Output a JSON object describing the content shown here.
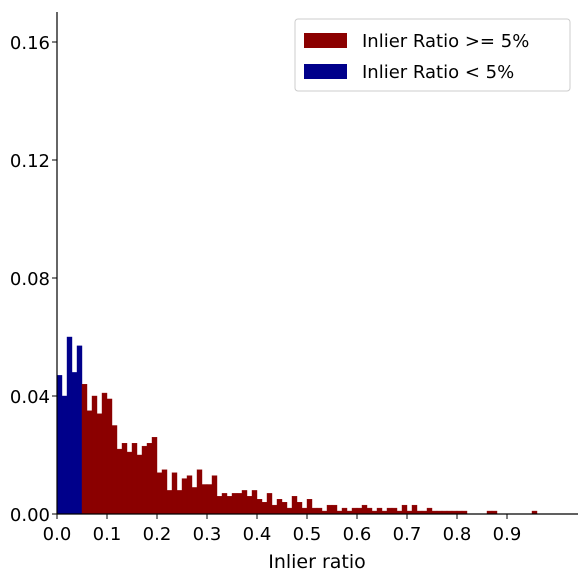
{
  "chart_data": {
    "type": "bar",
    "title": "",
    "xlabel": "Inlier ratio",
    "ylabel": "",
    "xlim": [
      0.0,
      1.0
    ],
    "ylim": [
      0.0,
      0.17
    ],
    "x_ticks": [
      "0.0",
      "0.1",
      "0.2",
      "0.3",
      "0.4",
      "0.5",
      "0.6",
      "0.7",
      "0.8",
      "0.9"
    ],
    "y_ticks": [
      "0.00",
      "0.04",
      "0.08",
      "0.12",
      "0.16"
    ],
    "bin_width": 0.01,
    "legend": {
      "position": "top-right",
      "entries": [
        {
          "label": "Inlier Ratio >= 5%",
          "color": "#8B0000"
        },
        {
          "label": "Inlier Ratio < 5%",
          "color": "#00008B"
        }
      ]
    },
    "series": [
      {
        "name": "Inlier Ratio < 5%",
        "color": "#00008B",
        "x": [
          0.0,
          0.01,
          0.02,
          0.03,
          0.04
        ],
        "values": [
          0.047,
          0.04,
          0.06,
          0.048,
          0.057
        ]
      },
      {
        "name": "Inlier Ratio >= 5%",
        "color": "#8B0000",
        "x": [
          0.05,
          0.06,
          0.07,
          0.08,
          0.09,
          0.1,
          0.11,
          0.12,
          0.13,
          0.14,
          0.15,
          0.16,
          0.17,
          0.18,
          0.19,
          0.2,
          0.21,
          0.22,
          0.23,
          0.24,
          0.25,
          0.26,
          0.27,
          0.28,
          0.29,
          0.3,
          0.31,
          0.32,
          0.33,
          0.34,
          0.35,
          0.36,
          0.37,
          0.38,
          0.39,
          0.4,
          0.41,
          0.42,
          0.43,
          0.44,
          0.45,
          0.46,
          0.47,
          0.48,
          0.49,
          0.5,
          0.51,
          0.52,
          0.53,
          0.54,
          0.55,
          0.56,
          0.57,
          0.58,
          0.59,
          0.6,
          0.61,
          0.62,
          0.63,
          0.64,
          0.65,
          0.66,
          0.67,
          0.68,
          0.69,
          0.7,
          0.71,
          0.72,
          0.73,
          0.74,
          0.75,
          0.76,
          0.77,
          0.78,
          0.79,
          0.8,
          0.81,
          0.82,
          0.83,
          0.84,
          0.85,
          0.86,
          0.87,
          0.88,
          0.89,
          0.9,
          0.91,
          0.92,
          0.93,
          0.94,
          0.95
        ],
        "values": [
          0.044,
          0.035,
          0.04,
          0.034,
          0.041,
          0.039,
          0.03,
          0.022,
          0.024,
          0.021,
          0.024,
          0.02,
          0.023,
          0.024,
          0.026,
          0.014,
          0.015,
          0.008,
          0.014,
          0.008,
          0.012,
          0.013,
          0.009,
          0.015,
          0.01,
          0.01,
          0.013,
          0.006,
          0.007,
          0.006,
          0.007,
          0.007,
          0.008,
          0.006,
          0.008,
          0.005,
          0.004,
          0.007,
          0.003,
          0.005,
          0.004,
          0.002,
          0.006,
          0.004,
          0.002,
          0.005,
          0.002,
          0.002,
          0.001,
          0.003,
          0.003,
          0.001,
          0.002,
          0.001,
          0.002,
          0.002,
          0.003,
          0.002,
          0.001,
          0.002,
          0.001,
          0.002,
          0.002,
          0.001,
          0.003,
          0.001,
          0.003,
          0.001,
          0.001,
          0.002,
          0.001,
          0.001,
          0.001,
          0.001,
          0.001,
          0.001,
          0.001,
          0.0,
          0.0,
          0.0,
          0.0,
          0.001,
          0.001,
          0.0,
          0.0,
          0.0,
          0.0,
          0.0,
          0.0,
          0.0,
          0.001
        ]
      }
    ]
  }
}
